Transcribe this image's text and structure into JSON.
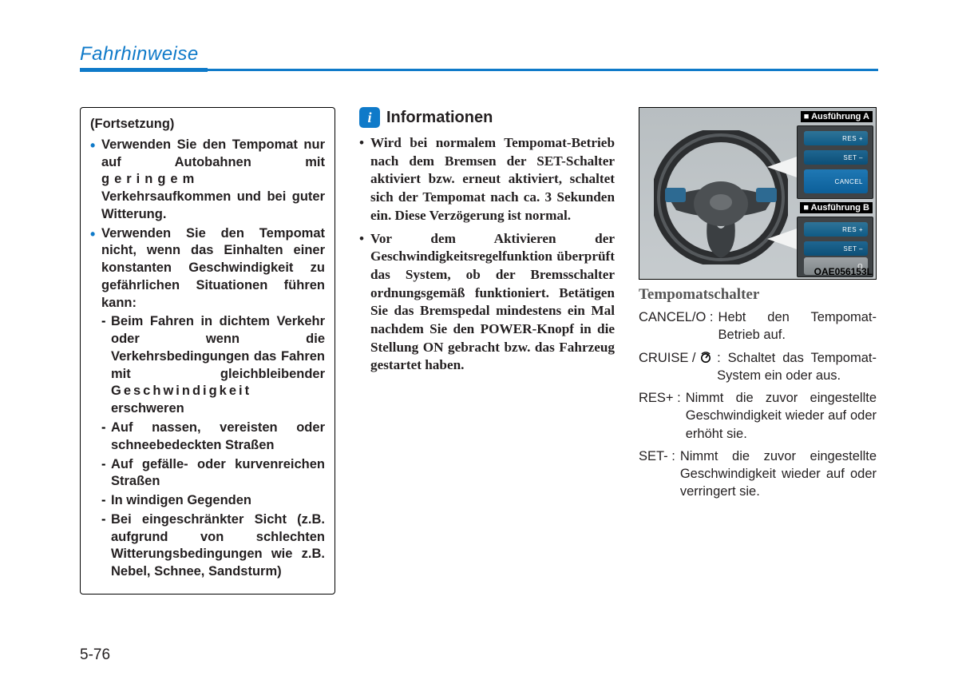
{
  "header": {
    "title": "Fahrhinweise"
  },
  "col1": {
    "continuation": "(Fortsetzung)",
    "bullets": [
      {
        "html": "Verwenden Sie den Tempomat nur auf Autobahnen mit <span class='spaced'>geringem</span> Verkehrsaufkommen und bei guter Witterung."
      },
      {
        "html": "Verwenden Sie den Tempomat nicht, wenn das Einhalten einer konstanten Geschwindigkeit zu gefährlichen Situationen führen kann:",
        "sub": [
          "Beim Fahren in dichtem Verkehr oder wenn die Verkehrsbedingungen das Fahren mit gleichbleibender <span class='spaced2'>Geschwindigkeit</span> erschweren",
          "Auf nassen, vereisten oder schneebedeckten Straßen",
          "Auf gefälle- oder kurvenreichen Straßen",
          "In windigen Gegenden",
          "Bei eingeschränkter Sicht (z.B. aufgrund von schlechten Witterungsbedingungen wie z.B. Nebel, Schnee, Sandsturm)"
        ]
      }
    ]
  },
  "col2": {
    "info_title": "Informationen",
    "items": [
      "Wird bei normalem Tempomat-Betrieb nach dem Bremsen der SET-Schalter aktiviert bzw. erneut aktiviert, schaltet sich der Tempomat nach ca. 3 Sekunden ein. Diese Verzögerung ist normal.",
      "Vor dem Aktivieren der Geschwindigkeitsregelfunktion überprüft das System, ob der Bremsschalter ordnungsgemäß funktioniert. Betätigen Sie das Bremspedal mindestens ein Mal nachdem Sie den POWER-Knopf in die Stellung ON gebracht bzw. das Fahrzeug gestartet haben."
    ]
  },
  "figure": {
    "variant_a": "■ Ausführung A",
    "variant_b": "■ Ausführung B",
    "btn_res": "RES +",
    "btn_set": "SET –",
    "btn_cancel": "CANCEL",
    "btn_o": "O",
    "code": "OAE056153L",
    "caption": "Tempomatschalter"
  },
  "definitions": [
    {
      "term": "CANCEL/O :",
      "desc": "Hebt den Tempomat-Betrieb auf."
    },
    {
      "term": "CRUISE / ",
      "icon": true,
      "desc": ": Schaltet das Tempomat-System ein oder aus."
    },
    {
      "term": "RES+ :",
      "desc": "Nimmt die zuvor eingestellte Geschwindigkeit wieder auf oder erhöht sie."
    },
    {
      "term": "SET- :",
      "desc": "Nimmt die zuvor eingestellte Geschwindigkeit wieder auf oder verringert sie."
    }
  ],
  "page_number": "5-76"
}
